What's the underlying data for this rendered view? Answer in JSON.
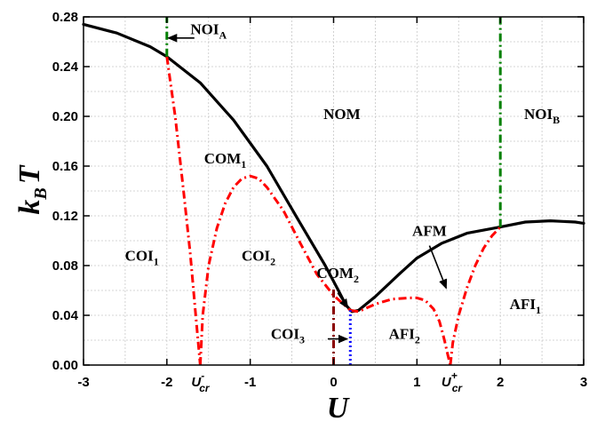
{
  "chart_data": {
    "type": "line",
    "xlabel": "U",
    "ylabel_main": "k",
    "ylabel_sub": "B",
    "ylabel_tail": "T",
    "xlim": [
      -3,
      3
    ],
    "ylim": [
      0,
      0.28
    ],
    "x_ticks": [
      {
        "x": -3,
        "label": "-3"
      },
      {
        "x": -2,
        "label": "-2"
      },
      {
        "x": -1,
        "label": "-1"
      },
      {
        "x": 0,
        "label": "0"
      },
      {
        "x": 1,
        "label": "1"
      },
      {
        "x": 2,
        "label": "2"
      },
      {
        "x": 3,
        "label": "3"
      }
    ],
    "x_special_ticks": [
      {
        "x": -1.6,
        "main": "U",
        "sub": "cr",
        "sup": "-"
      },
      {
        "x": 1.4,
        "main": "U",
        "sub": "cr",
        "sup": "+"
      }
    ],
    "y_ticks": [
      0.0,
      0.04,
      0.08,
      0.12,
      0.16,
      0.2,
      0.24,
      0.28
    ],
    "y_tick_labels": [
      "0.00",
      "0.04",
      "0.08",
      "0.12",
      "0.16",
      "0.20",
      "0.24",
      "0.28"
    ],
    "grid": true,
    "series": [
      {
        "style": "solid",
        "color": "#000000",
        "x": [
          -3.0,
          -2.6,
          -2.2,
          -2.0,
          -1.6,
          -1.2,
          -0.8,
          -0.4,
          -0.1,
          0.05,
          0.15,
          0.22,
          0.3,
          0.5,
          0.8,
          1.0,
          1.3,
          1.6,
          2.0,
          2.3,
          2.6,
          2.9,
          3.0
        ],
        "y": [
          0.274,
          0.267,
          0.256,
          0.248,
          0.227,
          0.197,
          0.16,
          0.114,
          0.08,
          0.061,
          0.048,
          0.043,
          0.044,
          0.055,
          0.074,
          0.086,
          0.098,
          0.106,
          0.111,
          0.115,
          0.116,
          0.115,
          0.114
        ]
      },
      {
        "style": "dash-dot",
        "color": "#ff0000",
        "x": [
          -2.0,
          -1.9,
          -1.8,
          -1.72,
          -1.66,
          -1.62,
          -1.6
        ],
        "y": [
          0.248,
          0.2,
          0.14,
          0.09,
          0.045,
          0.015,
          0.0
        ]
      },
      {
        "style": "dash-dot",
        "color": "#ff0000",
        "x": [
          -1.6,
          -1.57,
          -1.5,
          -1.4,
          -1.3,
          -1.2,
          -1.1,
          -1.0,
          -0.9,
          -0.8,
          -0.6,
          -0.4,
          -0.2,
          0.0,
          0.1,
          0.2
        ],
        "y": [
          0.0,
          0.04,
          0.08,
          0.11,
          0.13,
          0.143,
          0.15,
          0.152,
          0.15,
          0.143,
          0.124,
          0.098,
          0.073,
          0.056,
          0.05,
          0.044
        ]
      },
      {
        "style": "dash-dot",
        "color": "#ff0000",
        "x": [
          0.2,
          0.3,
          0.5,
          0.7,
          0.9,
          1.0,
          1.1,
          1.2,
          1.27,
          1.33,
          1.37,
          1.4
        ],
        "y": [
          0.044,
          0.043,
          0.049,
          0.053,
          0.054,
          0.054,
          0.052,
          0.045,
          0.035,
          0.02,
          0.008,
          0.0
        ]
      },
      {
        "style": "dash-dot",
        "color": "#ff0000",
        "x": [
          1.4,
          1.43,
          1.5,
          1.6,
          1.7,
          1.8,
          1.9,
          2.0
        ],
        "y": [
          0.0,
          0.018,
          0.04,
          0.062,
          0.08,
          0.094,
          0.104,
          0.111
        ]
      },
      {
        "style": "dash-dot",
        "color": "#008000",
        "x": [
          -2.0,
          -2.0
        ],
        "y": [
          0.248,
          0.28
        ]
      },
      {
        "style": "dash-dot",
        "color": "#008000",
        "x": [
          2.0,
          2.0
        ],
        "y": [
          0.111,
          0.28
        ]
      },
      {
        "style": "dash-dot",
        "color": "#8b0000",
        "x": [
          0.0,
          0.0
        ],
        "y": [
          0.0,
          0.063
        ]
      },
      {
        "style": "dotted",
        "color": "#0000ff",
        "x": [
          0.2,
          0.2
        ],
        "y": [
          0.0,
          0.044
        ]
      }
    ],
    "annotations": [
      {
        "main": "NOI",
        "sub": "A",
        "x": -1.5,
        "y": 0.266
      },
      {
        "main": "NOM",
        "sub": "",
        "x": 0.1,
        "y": 0.198
      },
      {
        "main": "NOI",
        "sub": "B",
        "x": 2.5,
        "y": 0.198
      },
      {
        "main": "COM",
        "sub": "1",
        "x": -1.3,
        "y": 0.162
      },
      {
        "main": "COI",
        "sub": "1",
        "x": -2.3,
        "y": 0.084
      },
      {
        "main": "COI",
        "sub": "2",
        "x": -0.9,
        "y": 0.084
      },
      {
        "main": "AFM",
        "sub": "",
        "x": 1.15,
        "y": 0.104
      },
      {
        "main": "COM",
        "sub": "2",
        "x": 0.05,
        "y": 0.07
      },
      {
        "main": "COI",
        "sub": "3",
        "x": -0.55,
        "y": 0.021
      },
      {
        "main": "AFI",
        "sub": "2",
        "x": 0.85,
        "y": 0.021
      },
      {
        "main": "AFI",
        "sub": "1",
        "x": 2.3,
        "y": 0.045
      }
    ],
    "arrows": [
      {
        "from": [
          -1.67,
          0.263
        ],
        "to": [
          -1.98,
          0.263
        ]
      },
      {
        "from": [
          1.15,
          0.096
        ],
        "to": [
          1.35,
          0.062
        ]
      },
      {
        "from": [
          0.05,
          0.058
        ],
        "to": [
          0.17,
          0.046
        ]
      },
      {
        "from": [
          -0.07,
          0.021
        ],
        "to": [
          0.16,
          0.021
        ]
      }
    ],
    "colors": {
      "frame": "#000000",
      "grid": "#c8c8c8"
    }
  }
}
